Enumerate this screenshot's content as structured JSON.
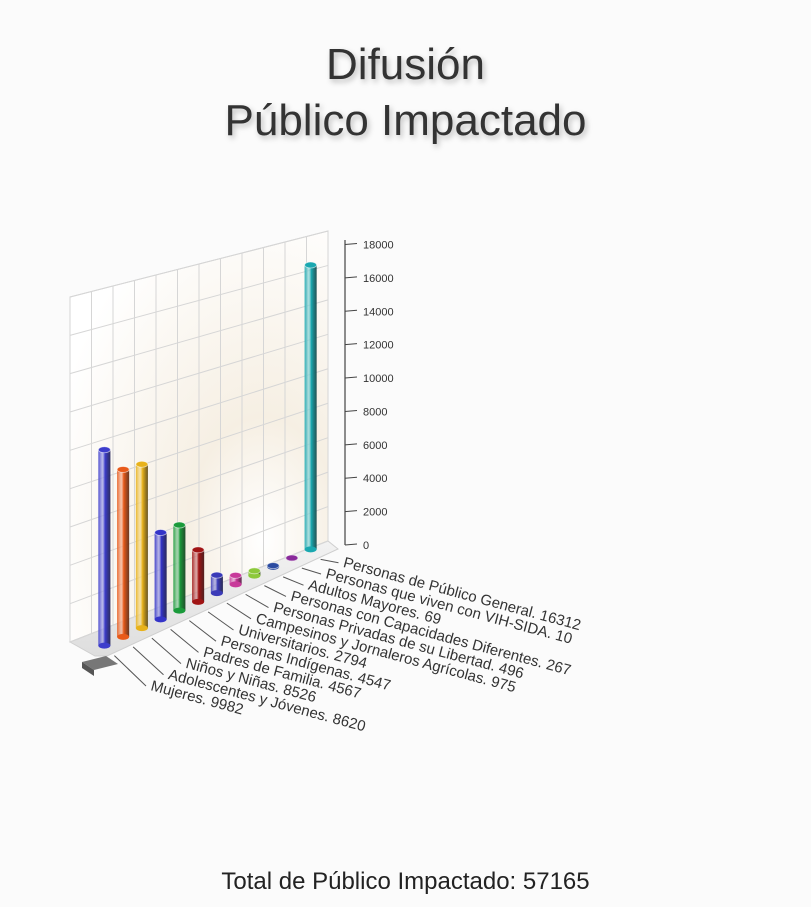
{
  "chart_data": {
    "type": "bar",
    "title_line1": "Difusión",
    "title_line2": "Público Impactado",
    "ylim": [
      0,
      18000
    ],
    "yticks": [
      "0",
      "2000",
      "4000",
      "6000",
      "8000",
      "10000",
      "12000",
      "14000",
      "16000",
      "18000"
    ],
    "yticks_values": [
      0,
      2000,
      4000,
      6000,
      8000,
      10000,
      12000,
      14000,
      16000,
      18000
    ],
    "categories": [
      "Mujeres",
      "Adolescentes y Jóvenes",
      "Niños y Niñas",
      "Padres de Familia",
      "Personas Indígenas",
      "Universitarios",
      "Campesinos y Jornaleros Agrícolas",
      "Personas Privadas de su Libertad",
      "Personas con Capacidades Diferentes",
      "Adultos Mayores",
      "Personas que viven con VIH-SIDA",
      "Personas de Público General"
    ],
    "category_labels": [
      "Mujeres. 9982",
      "Adolescentes y Jóvenes. 8620",
      "Niños y Niñas. 8526",
      "Padres de Familia. 4567",
      "Personas Indígenas. 4547",
      "Universitarios. 2794",
      "Campesinos y Jornaleros Agrícolas. 975",
      "Personas Privadas de su Libertad. 496",
      "Personas con Capacidades Diferentes. 267",
      "Adultos Mayores. 69",
      "Personas que viven con VIH-SIDA. 10",
      "Personas de Público General. 16312"
    ],
    "values": [
      9982,
      8620,
      8526,
      4567,
      4547,
      2794,
      975,
      496,
      267,
      69,
      10,
      16312
    ],
    "colors": [
      "#3d3dcc",
      "#e85a1a",
      "#e8b21a",
      "#3434c8",
      "#1a9a3a",
      "#a01414",
      "#3a3ab8",
      "#c83a9a",
      "#8cc83a",
      "#2a4aa0",
      "#8a2a9a",
      "#1aa8b0"
    ]
  },
  "footer": {
    "total_text": "Total de Público Impactado: 57165"
  }
}
